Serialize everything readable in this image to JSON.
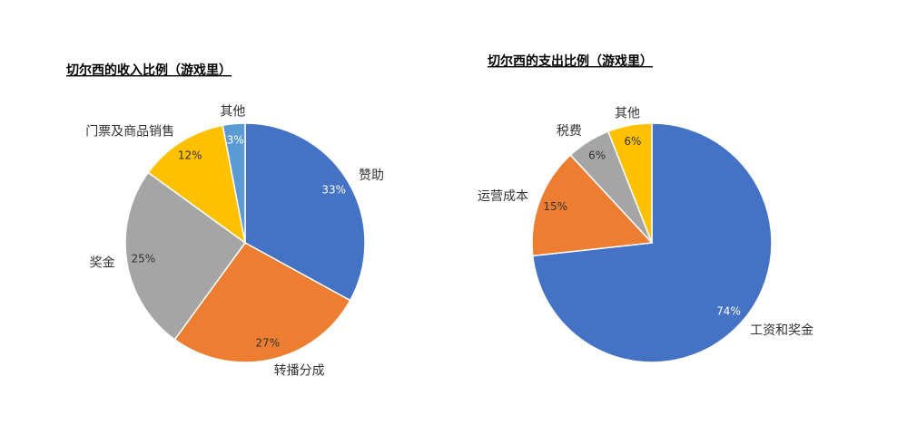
{
  "chart_data": [
    {
      "type": "pie",
      "title": "切尔西的收入比例（游戏里）",
      "categories": [
        "赞助",
        "转播分成",
        "奖金",
        "门票及商品销售",
        "其他"
      ],
      "values": [
        33,
        27,
        25,
        12,
        3
      ],
      "value_labels": [
        "33%",
        "27%",
        "25%",
        "12%",
        "3%"
      ],
      "colors": [
        "#4472c4",
        "#ed7d31",
        "#a5a5a5",
        "#ffc000",
        "#5b9bd5"
      ]
    },
    {
      "type": "pie",
      "title": "切尔西的支出比例（游戏里）",
      "categories": [
        "工资和奖金",
        "运营成本",
        "税费",
        "其他"
      ],
      "values": [
        74,
        15,
        6,
        6
      ],
      "value_labels": [
        "74%",
        "15%",
        "6%",
        "6%"
      ],
      "colors": [
        "#4472c4",
        "#ed7d31",
        "#a5a5a5",
        "#ffc000"
      ]
    }
  ]
}
